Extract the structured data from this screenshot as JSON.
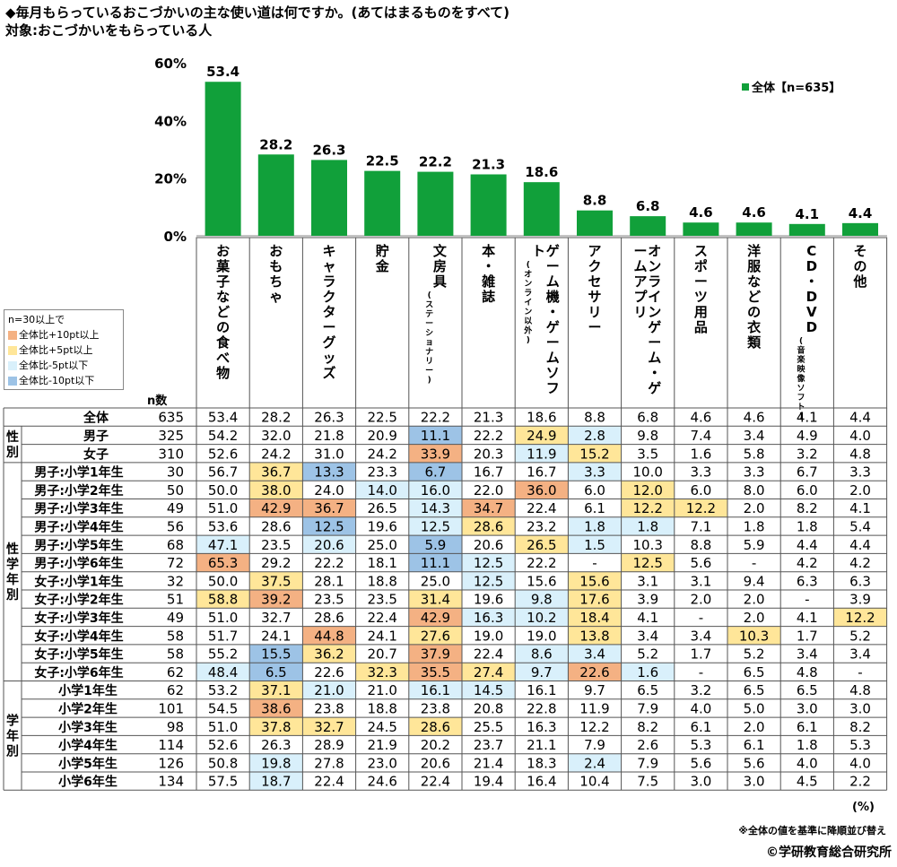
{
  "title": "◆毎月もらっているおこづかいの主な使い道は何ですか。(あてはまるものをすべて)",
  "subtitle": "対象:おこづかいをもらっている人",
  "legend_box": {
    "header": "n=30以上で",
    "items": [
      {
        "label": "全体比+10pt以上",
        "color": "#f4b183"
      },
      {
        "label": "全体比+5pt以上",
        "color": "#ffe699"
      },
      {
        "label": "全体比-5pt以下",
        "color": "#d9f0fb"
      },
      {
        "label": "全体比-10pt以下",
        "color": "#9dc3e6"
      }
    ]
  },
  "n_label": "n数",
  "unit": "(%)",
  "note": "※全体の値を基準に降順並び替え",
  "copyright": "©学研教育総合研究所",
  "colors": {
    "bar": "#11a03a",
    "up10": "#f4b183",
    "up5": "#ffe699",
    "dn5": "#d9f0fb",
    "dn10": "#9dc3e6"
  },
  "chart_data": {
    "type": "bar",
    "title": "◆毎月もらっているおこづかいの主な使い道は何ですか。(あてはまるものをすべて)",
    "categories": [
      "お菓子などの食べ物",
      "おもちゃ",
      "キャラクターグッズ",
      "貯金",
      "文房具",
      "本・雑誌",
      "ゲーム機・ゲームソフト",
      "アクセサリー",
      "オンラインゲーム・ゲームアプリ",
      "スポーツ用品",
      "洋服などの衣類",
      "CD・DVD",
      "その他"
    ],
    "category_notes": [
      "",
      "",
      "",
      "",
      "(ステーショナリー)",
      "",
      "(オンライン以外)",
      "",
      "",
      "",
      "",
      "(音楽映像ソフト)",
      ""
    ],
    "series": [
      {
        "name": "全体【n=635】",
        "values": [
          53.4,
          28.2,
          26.3,
          22.5,
          22.2,
          21.3,
          18.6,
          8.8,
          6.8,
          4.6,
          4.6,
          4.1,
          4.4
        ]
      }
    ],
    "yticks": [
      "0%",
      "20%",
      "40%",
      "60%"
    ],
    "ylim": [
      0,
      60
    ],
    "legend": "top-right"
  },
  "table": {
    "groups": [
      {
        "label": "性別",
        "start": 1,
        "end": 2
      },
      {
        "label": "性学年別",
        "start": 3,
        "end": 14
      },
      {
        "label": "学年別",
        "start": 15,
        "end": 20
      }
    ],
    "rows": [
      {
        "label": "全体",
        "n": "635",
        "values": [
          "53.4",
          "28.2",
          "26.3",
          "22.5",
          "22.2",
          "21.3",
          "18.6",
          "8.8",
          "6.8",
          "4.6",
          "4.6",
          "4.1",
          "4.4"
        ],
        "hl": [
          "",
          "",
          "",
          "",
          "",
          "",
          "",
          "",
          "",
          "",
          "",
          "",
          ""
        ]
      },
      {
        "label": "男子",
        "n": "325",
        "values": [
          "54.2",
          "32.0",
          "21.8",
          "20.9",
          "11.1",
          "22.2",
          "24.9",
          "2.8",
          "9.8",
          "7.4",
          "3.4",
          "4.9",
          "4.0"
        ],
        "hl": [
          "",
          "",
          "",
          "",
          "dn10",
          "",
          "up5",
          "dn5",
          "",
          "",
          "",
          "",
          ""
        ]
      },
      {
        "label": "女子",
        "n": "310",
        "values": [
          "52.6",
          "24.2",
          "31.0",
          "24.2",
          "33.9",
          "20.3",
          "11.9",
          "15.2",
          "3.5",
          "1.6",
          "5.8",
          "3.2",
          "4.8"
        ],
        "hl": [
          "",
          "",
          "",
          "",
          "up10",
          "",
          "dn5",
          "up5",
          "",
          "",
          "",
          "",
          ""
        ]
      },
      {
        "label": "男子:小学1年生",
        "n": "30",
        "values": [
          "56.7",
          "36.7",
          "13.3",
          "23.3",
          "6.7",
          "16.7",
          "16.7",
          "3.3",
          "10.0",
          "3.3",
          "3.3",
          "6.7",
          "3.3"
        ],
        "hl": [
          "",
          "up5",
          "dn10",
          "",
          "dn10",
          "",
          "",
          "dn5",
          "",
          "",
          "",
          "",
          ""
        ]
      },
      {
        "label": "男子:小学2年生",
        "n": "50",
        "values": [
          "50.0",
          "38.0",
          "24.0",
          "14.0",
          "16.0",
          "22.0",
          "36.0",
          "6.0",
          "12.0",
          "6.0",
          "8.0",
          "6.0",
          "2.0"
        ],
        "hl": [
          "",
          "up5",
          "",
          "dn5",
          "dn5",
          "",
          "up10",
          "",
          "up5",
          "",
          "",
          "",
          ""
        ]
      },
      {
        "label": "男子:小学3年生",
        "n": "49",
        "values": [
          "51.0",
          "42.9",
          "36.7",
          "26.5",
          "14.3",
          "34.7",
          "22.4",
          "6.1",
          "12.2",
          "12.2",
          "2.0",
          "8.2",
          "4.1"
        ],
        "hl": [
          "",
          "up10",
          "up10",
          "",
          "dn5",
          "up10",
          "",
          "",
          "up5",
          "up5",
          "",
          "",
          ""
        ]
      },
      {
        "label": "男子:小学4年生",
        "n": "56",
        "values": [
          "53.6",
          "28.6",
          "12.5",
          "19.6",
          "12.5",
          "28.6",
          "23.2",
          "1.8",
          "1.8",
          "7.1",
          "1.8",
          "1.8",
          "5.4"
        ],
        "hl": [
          "",
          "",
          "dn10",
          "",
          "dn5",
          "up5",
          "",
          "dn5",
          "dn5",
          "",
          "",
          "",
          ""
        ]
      },
      {
        "label": "男子:小学5年生",
        "n": "68",
        "values": [
          "47.1",
          "23.5",
          "20.6",
          "25.0",
          "5.9",
          "20.6",
          "26.5",
          "1.5",
          "10.3",
          "8.8",
          "5.9",
          "4.4",
          "4.4"
        ],
        "hl": [
          "dn5",
          "",
          "dn5",
          "",
          "dn10",
          "",
          "up5",
          "dn5",
          "",
          "",
          "",
          "",
          ""
        ]
      },
      {
        "label": "男子:小学6年生",
        "n": "72",
        "values": [
          "65.3",
          "29.2",
          "22.2",
          "18.1",
          "11.1",
          "12.5",
          "22.2",
          "-",
          "12.5",
          "5.6",
          "-",
          "4.2",
          "4.2"
        ],
        "hl": [
          "up10",
          "",
          "",
          "",
          "dn10",
          "dn5",
          "",
          "",
          "up5",
          "",
          "",
          "",
          ""
        ]
      },
      {
        "label": "女子:小学1年生",
        "n": "32",
        "values": [
          "50.0",
          "37.5",
          "28.1",
          "18.8",
          "25.0",
          "12.5",
          "15.6",
          "15.6",
          "3.1",
          "3.1",
          "9.4",
          "6.3",
          "6.3"
        ],
        "hl": [
          "",
          "up5",
          "",
          "",
          "",
          "dn5",
          "",
          "up5",
          "",
          "",
          "",
          "",
          ""
        ]
      },
      {
        "label": "女子:小学2年生",
        "n": "51",
        "values": [
          "58.8",
          "39.2",
          "23.5",
          "23.5",
          "31.4",
          "19.6",
          "9.8",
          "17.6",
          "3.9",
          "2.0",
          "2.0",
          "-",
          "3.9"
        ],
        "hl": [
          "up5",
          "up10",
          "",
          "",
          "up5",
          "",
          "dn5",
          "up5",
          "",
          "",
          "",
          "",
          ""
        ]
      },
      {
        "label": "女子:小学3年生",
        "n": "49",
        "values": [
          "51.0",
          "32.7",
          "28.6",
          "22.4",
          "42.9",
          "16.3",
          "10.2",
          "18.4",
          "4.1",
          "-",
          "2.0",
          "4.1",
          "12.2"
        ],
        "hl": [
          "",
          "",
          "",
          "",
          "up10",
          "dn5",
          "dn5",
          "up5",
          "",
          "",
          "",
          "",
          "up5"
        ]
      },
      {
        "label": "女子:小学4年生",
        "n": "58",
        "values": [
          "51.7",
          "24.1",
          "44.8",
          "24.1",
          "27.6",
          "19.0",
          "19.0",
          "13.8",
          "3.4",
          "3.4",
          "10.3",
          "1.7",
          "5.2"
        ],
        "hl": [
          "",
          "",
          "up10",
          "",
          "up5",
          "",
          "",
          "up5",
          "",
          "",
          "up5",
          "",
          ""
        ]
      },
      {
        "label": "女子:小学5年生",
        "n": "58",
        "values": [
          "55.2",
          "15.5",
          "36.2",
          "20.7",
          "37.9",
          "22.4",
          "8.6",
          "3.4",
          "5.2",
          "1.7",
          "5.2",
          "3.4",
          "3.4"
        ],
        "hl": [
          "",
          "dn10",
          "up5",
          "",
          "up10",
          "",
          "dn5",
          "dn5",
          "",
          "",
          "",
          "",
          ""
        ]
      },
      {
        "label": "女子:小学6年生",
        "n": "62",
        "values": [
          "48.4",
          "6.5",
          "22.6",
          "32.3",
          "35.5",
          "27.4",
          "9.7",
          "22.6",
          "1.6",
          "-",
          "6.5",
          "4.8",
          "-"
        ],
        "hl": [
          "dn5",
          "dn10",
          "",
          "up5",
          "up10",
          "up5",
          "dn5",
          "up10",
          "dn5",
          "",
          "",
          "",
          ""
        ]
      },
      {
        "label": "小学1年生",
        "n": "62",
        "values": [
          "53.2",
          "37.1",
          "21.0",
          "21.0",
          "16.1",
          "14.5",
          "16.1",
          "9.7",
          "6.5",
          "3.2",
          "6.5",
          "6.5",
          "4.8"
        ],
        "hl": [
          "",
          "up5",
          "dn5",
          "",
          "dn5",
          "dn5",
          "",
          "",
          "",
          "",
          "",
          "",
          ""
        ]
      },
      {
        "label": "小学2年生",
        "n": "101",
        "values": [
          "54.5",
          "38.6",
          "23.8",
          "18.8",
          "23.8",
          "20.8",
          "22.8",
          "11.9",
          "7.9",
          "4.0",
          "5.0",
          "3.0",
          "3.0"
        ],
        "hl": [
          "",
          "up10",
          "",
          "",
          "",
          "",
          "",
          "",
          "",
          "",
          "",
          "",
          ""
        ]
      },
      {
        "label": "小学3年生",
        "n": "98",
        "values": [
          "51.0",
          "37.8",
          "32.7",
          "24.5",
          "28.6",
          "25.5",
          "16.3",
          "12.2",
          "8.2",
          "6.1",
          "2.0",
          "6.1",
          "8.2"
        ],
        "hl": [
          "",
          "up5",
          "up5",
          "",
          "up5",
          "",
          "",
          "",
          "",
          "",
          "",
          "",
          ""
        ]
      },
      {
        "label": "小学4年生",
        "n": "114",
        "values": [
          "52.6",
          "26.3",
          "28.9",
          "21.9",
          "20.2",
          "23.7",
          "21.1",
          "7.9",
          "2.6",
          "5.3",
          "6.1",
          "1.8",
          "5.3"
        ],
        "hl": [
          "",
          "",
          "",
          "",
          "",
          "",
          "",
          "",
          "",
          "",
          "",
          "",
          ""
        ]
      },
      {
        "label": "小学5年生",
        "n": "126",
        "values": [
          "50.8",
          "19.8",
          "27.8",
          "23.0",
          "20.6",
          "21.4",
          "18.3",
          "2.4",
          "7.9",
          "5.6",
          "5.6",
          "4.0",
          "4.0"
        ],
        "hl": [
          "",
          "dn5",
          "",
          "",
          "",
          "",
          "",
          "dn5",
          "",
          "",
          "",
          "",
          ""
        ]
      },
      {
        "label": "小学6年生",
        "n": "134",
        "values": [
          "57.5",
          "18.7",
          "22.4",
          "24.6",
          "22.4",
          "19.4",
          "16.4",
          "10.4",
          "7.5",
          "3.0",
          "3.0",
          "4.5",
          "2.2"
        ],
        "hl": [
          "",
          "dn5",
          "",
          "",
          "",
          "",
          "",
          "",
          "",
          "",
          "",
          "",
          ""
        ]
      }
    ]
  }
}
